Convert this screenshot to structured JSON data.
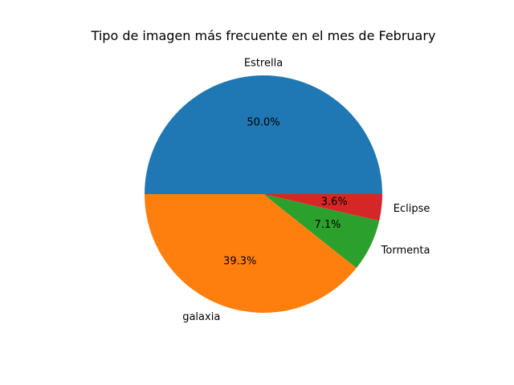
{
  "chart_data": {
    "type": "pie",
    "title": "Tipo de imagen más frecuente en el mes de February",
    "start_angle_deg": 0,
    "direction": "counterclockwise",
    "slices": [
      {
        "label": "Estrella",
        "value": 50.0,
        "pct_label": "50.0%",
        "color": "#1f77b4"
      },
      {
        "label": "galaxia",
        "value": 39.3,
        "pct_label": "39.3%",
        "color": "#ff7f0e"
      },
      {
        "label": "Tormenta",
        "value": 7.1,
        "pct_label": "7.1%",
        "color": "#2ca02c"
      },
      {
        "label": "Eclipse",
        "value": 3.6,
        "pct_label": "3.6%",
        "color": "#d62728"
      }
    ]
  }
}
